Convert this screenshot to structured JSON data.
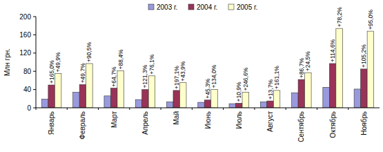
{
  "chart_data": {
    "type": "bar",
    "y_label": "Млн грн.",
    "categories": [
      "Январь",
      "Февраль",
      "Март",
      "Апрель",
      "Май",
      "Июнь",
      "Июль",
      "Август",
      "Сентябрь",
      "Октябрь",
      "Ноябрь"
    ],
    "series": [
      {
        "name": "2003 г.",
        "color": "#9999dd",
        "values": [
          19,
          34,
          26,
          18,
          13,
          12,
          9,
          13,
          33,
          45,
          41
        ]
      },
      {
        "name": "2004 г.",
        "color": "#993358",
        "values": [
          50,
          51,
          43,
          40,
          38,
          17,
          10,
          15,
          62,
          97,
          85
        ],
        "change_labels": [
          "+165,0%",
          "+49,7%",
          "+64,7%",
          "+121,3%",
          "+197,1%",
          "+45,3%",
          "+10,9%",
          "+13,7%",
          "+86,7%",
          "+114,6%",
          "+105,2%"
        ]
      },
      {
        "name": "2005 г.",
        "color": "#ffffcc",
        "values": [
          75,
          97,
          81,
          70,
          55,
          40,
          34,
          38,
          77,
          174,
          168
        ],
        "change_labels": [
          "+49,9%",
          "+90,5%",
          "+88,4%",
          "+76,1%",
          "+43,9%",
          "+134,0%",
          "+246,6%",
          "+161,1%",
          "+24,5%",
          "+78,2%",
          "+95,0%"
        ]
      }
    ],
    "ylim": [
      0,
      200
    ],
    "yticks": [
      0,
      40,
      80,
      120,
      160,
      200
    ],
    "grid": false,
    "legend": "top"
  }
}
